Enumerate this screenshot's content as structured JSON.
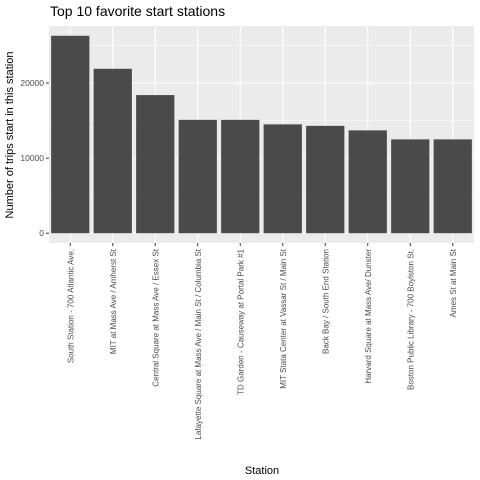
{
  "chart_data": {
    "type": "bar",
    "title": "Top 10 favorite start stations",
    "xlabel": "Station",
    "ylabel": "Number of trips start in this station",
    "categories": [
      "South Station - 700 Atlantic Ave.",
      "MIT at Mass Ave / Amherst St",
      "Central Square at Mass Ave / Essex St",
      "Lafayette Square at Mass Ave / Main St / Columbia St",
      "TD Garden - Causeway at Portal Park #1",
      "MIT Stata Center at Vassar St / Main St",
      "Back Bay / South End Station",
      "Harvard Square at Mass Ave/ Dunster",
      "Boston Public Library - 700 Boylston St.",
      "Ames St at Main St"
    ],
    "values": [
      26300,
      21900,
      18400,
      15100,
      15100,
      14500,
      14300,
      13700,
      12500,
      12500
    ],
    "ylim": [
      -1300,
      27600
    ],
    "yticks": [
      0,
      10000,
      20000
    ],
    "ytick_labels": [
      "0",
      "10000",
      "20000"
    ],
    "grid": true,
    "legend": "none",
    "colors": {
      "panel": "#ebebeb",
      "grid_major": "#ffffff",
      "bar": "#4a4a4a",
      "tick_text": "#4d4d4d",
      "tick_mark": "#333333"
    }
  }
}
